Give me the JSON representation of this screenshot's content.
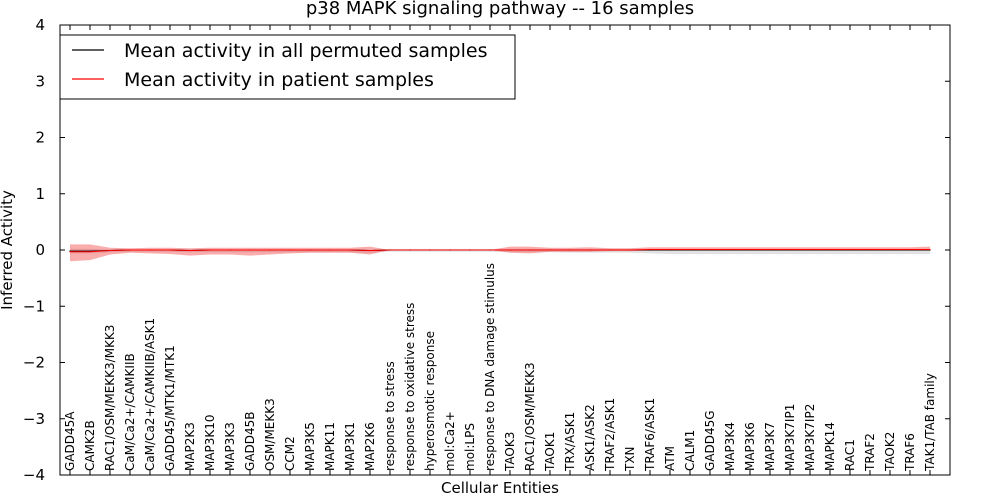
{
  "chart_data": {
    "type": "line",
    "title": "p38 MAPK signaling pathway -- 16 samples",
    "xlabel": "Cellular Entities",
    "ylabel": "Inferred Activity",
    "ylim": [
      -4,
      4
    ],
    "yticks": [
      "4",
      "3",
      "2",
      "1",
      "0",
      "−1",
      "−2",
      "−3",
      "−4"
    ],
    "ytick_values": [
      4,
      3,
      2,
      1,
      0,
      -1,
      -2,
      -3,
      -4
    ],
    "grid": false,
    "legend_position": "top-left",
    "categories": [
      "GADD45A",
      "CAMK2B",
      "RAC1/OSM/MEKK3/MKK3",
      "CaM/Ca2+/CAMKIIB",
      "CaM/Ca2+/CAMKIIB/ASK1",
      "GADD45/MTK1/MTK1",
      "MAP2K3",
      "MAP3K10",
      "MAP3K3",
      "GADD45B",
      "OSM/MEKK3",
      "CCM2",
      "MAP3K5",
      "MAPK11",
      "MAP3K1",
      "MAP2K6",
      "response to stress",
      "response to oxidative stress",
      "hyperosmotic response",
      "mol:Ca2+",
      "mol:LPS",
      "response to DNA damage stimulus",
      "TAOK3",
      "RAC1/OSM/MEKK3",
      "TAOK1",
      "TRX/ASK1",
      "ASK1/ASK2",
      "TRAF2/ASK1",
      "TXN",
      "TRAF6/ASK1",
      "ATM",
      "CALM1",
      "GADD45G",
      "MAP3K4",
      "MAP3K6",
      "MAP3K7",
      "MAP3K7IP1",
      "MAP3K7IP2",
      "MAPK14",
      "RAC1",
      "TRAF2",
      "TAOK2",
      "TRAF6",
      "TAK1/TAB family"
    ],
    "series": [
      {
        "name": "Mean activity in all permuted samples",
        "color": "#000000",
        "values": [
          -0.02,
          -0.02,
          -0.01,
          0.0,
          0.0,
          0.0,
          -0.01,
          0.0,
          0.0,
          0.0,
          0.0,
          0.0,
          0.0,
          0.0,
          0.0,
          -0.01,
          0.0,
          0.0,
          0.0,
          0.0,
          0.0,
          0.0,
          0.0,
          0.0,
          0.0,
          0.0,
          0.0,
          0.0,
          0.0,
          0.0,
          0.0,
          0.0,
          0.0,
          0.0,
          0.0,
          0.0,
          0.0,
          0.0,
          0.0,
          0.0,
          0.0,
          0.0,
          0.0,
          0.0
        ],
        "band_upper": [
          0.02,
          0.02,
          0.01,
          0.01,
          0.01,
          0.01,
          0.01,
          0.01,
          0.01,
          0.01,
          0.01,
          0.01,
          0.01,
          0.01,
          0.01,
          0.0,
          0.02,
          0.02,
          0.02,
          0.02,
          0.02,
          0.02,
          0.02,
          0.02,
          0.02,
          0.02,
          0.02,
          0.02,
          0.02,
          0.02,
          0.02,
          0.02,
          0.02,
          0.02,
          0.02,
          0.02,
          0.02,
          0.02,
          0.02,
          0.02,
          0.02,
          0.02,
          0.02,
          0.02
        ],
        "band_lower": [
          -0.06,
          -0.06,
          -0.04,
          -0.03,
          -0.03,
          -0.03,
          -0.04,
          -0.04,
          -0.04,
          -0.04,
          -0.04,
          -0.04,
          -0.04,
          -0.04,
          -0.04,
          -0.05,
          -0.03,
          -0.03,
          -0.03,
          -0.03,
          -0.03,
          -0.03,
          -0.04,
          -0.04,
          -0.04,
          -0.05,
          -0.05,
          -0.05,
          -0.05,
          -0.06,
          -0.07,
          -0.07,
          -0.07,
          -0.07,
          -0.07,
          -0.07,
          -0.07,
          -0.07,
          -0.07,
          -0.07,
          -0.07,
          -0.07,
          -0.07,
          -0.07
        ]
      },
      {
        "name": "Mean activity in patient samples",
        "color": "#ff0000",
        "values": [
          -0.03,
          -0.03,
          -0.01,
          0.0,
          0.0,
          0.0,
          -0.01,
          0.0,
          0.0,
          0.0,
          0.0,
          0.0,
          0.0,
          0.0,
          0.0,
          -0.01,
          0.0,
          0.0,
          0.0,
          0.0,
          0.0,
          0.0,
          0.0,
          0.0,
          0.0,
          0.0,
          0.0,
          0.0,
          0.0,
          0.01,
          0.01,
          0.01,
          0.01,
          0.01,
          0.01,
          0.01,
          0.01,
          0.01,
          0.01,
          0.01,
          0.01,
          0.01,
          0.01,
          0.01
        ],
        "band_upper": [
          0.1,
          0.1,
          0.04,
          0.03,
          0.04,
          0.04,
          0.03,
          0.04,
          0.04,
          0.04,
          0.04,
          0.04,
          0.04,
          0.04,
          0.04,
          0.06,
          0.0,
          0.0,
          0.0,
          0.0,
          0.0,
          0.0,
          0.06,
          0.06,
          0.04,
          0.04,
          0.05,
          0.03,
          0.03,
          0.05,
          0.05,
          0.05,
          0.05,
          0.05,
          0.05,
          0.05,
          0.05,
          0.05,
          0.05,
          0.05,
          0.05,
          0.05,
          0.05,
          0.06
        ],
        "band_lower": [
          -0.2,
          -0.18,
          -0.08,
          -0.05,
          -0.06,
          -0.07,
          -0.1,
          -0.08,
          -0.08,
          -0.1,
          -0.08,
          -0.06,
          -0.05,
          -0.05,
          -0.05,
          -0.08,
          0.0,
          0.0,
          0.0,
          0.0,
          0.0,
          0.0,
          -0.05,
          -0.06,
          -0.03,
          -0.03,
          -0.03,
          -0.02,
          -0.02,
          -0.01,
          -0.01,
          -0.01,
          -0.01,
          -0.01,
          -0.01,
          -0.01,
          -0.01,
          -0.01,
          -0.01,
          -0.01,
          -0.01,
          -0.01,
          -0.01,
          -0.01
        ]
      }
    ]
  }
}
